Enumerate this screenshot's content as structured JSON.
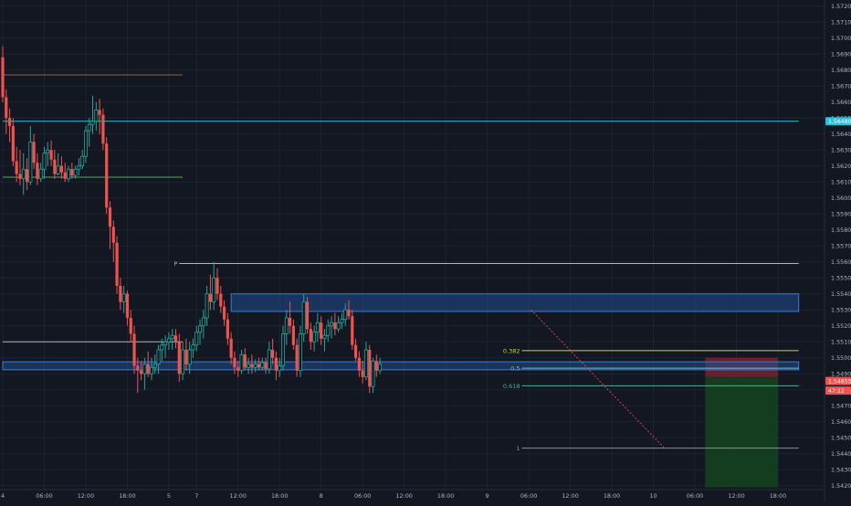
{
  "chart_data": {
    "type": "candlestick",
    "title": "",
    "theme": "dark",
    "colors": {
      "background": "#131722",
      "up": "#26a69a",
      "down": "#ef5350",
      "grid": "#1e2230",
      "axis_text": "#b2b5be",
      "zone": "#1f4f8f",
      "zone_edge": "#3d7bd1",
      "cyan_line": "#28c3d9",
      "green_line": "#4caf50",
      "orange_line": "#8a6a3a",
      "white_line": "#b2b5be",
      "fib_382": "#c9d53a",
      "fib_5": "#7fc97f",
      "fib_618": "#4caf8f",
      "fib_1": "#8a8f9c",
      "stop_box": "#6b2330",
      "target_box": "#15411f",
      "price_badge": "#ef5350",
      "cyan_badge": "#28c3d9"
    },
    "y_axis": {
      "min": 1.5419,
      "max": 1.5722,
      "tick_labels": [
        "1.57200",
        "1.57100",
        "1.57000",
        "1.56900",
        "1.56800",
        "1.56700",
        "1.56600",
        "1.56500",
        "1.56400",
        "1.56300",
        "1.56200",
        "1.56100",
        "1.56000",
        "1.55900",
        "1.55800",
        "1.55700",
        "1.55600",
        "1.55500",
        "1.55400",
        "1.55300",
        "1.55200",
        "1.55100",
        "1.55000",
        "1.54900",
        "1.54800",
        "1.54700",
        "1.54600",
        "1.54500",
        "1.54400",
        "1.54300",
        "1.54200"
      ],
      "badges": [
        {
          "text": "1.56480",
          "value": 1.5648,
          "color": "#28c3d9"
        },
        {
          "text": "1.54855",
          "value": 1.54855,
          "color": "#ef5350"
        },
        {
          "text": "47:12",
          "value": 1.54795,
          "color": "#ef5350"
        }
      ]
    },
    "x_axis": {
      "tick_labels": [
        {
          "text": "4",
          "bar": 0
        },
        {
          "text": "06:00",
          "bar": 12
        },
        {
          "text": "12:00",
          "bar": 24
        },
        {
          "text": "18:00",
          "bar": 36
        },
        {
          "text": "5",
          "bar": 48
        },
        {
          "text": "7",
          "bar": 56
        },
        {
          "text": "12:00",
          "bar": 68
        },
        {
          "text": "18:00",
          "bar": 80
        },
        {
          "text": "8",
          "bar": 92
        },
        {
          "text": "06:00",
          "bar": 104
        },
        {
          "text": "12:00",
          "bar": 116
        },
        {
          "text": "18:00",
          "bar": 128
        },
        {
          "text": "9",
          "bar": 140
        },
        {
          "text": "06:00",
          "bar": 152
        },
        {
          "text": "12:00",
          "bar": 164
        },
        {
          "text": "18:00",
          "bar": 176
        },
        {
          "text": "10",
          "bar": 188
        },
        {
          "text": "06:00",
          "bar": 200
        },
        {
          "text": "12:00",
          "bar": 212
        },
        {
          "text": "18:00",
          "bar": 224
        }
      ],
      "bars_total": 230
    },
    "candles": [
      {
        "o": 1.5688,
        "h": 1.5695,
        "l": 1.566,
        "c": 1.5663
      },
      {
        "o": 1.5663,
        "h": 1.5668,
        "l": 1.564,
        "c": 1.565
      },
      {
        "o": 1.565,
        "h": 1.5656,
        "l": 1.5635,
        "c": 1.5645
      },
      {
        "o": 1.5645,
        "h": 1.565,
        "l": 1.562,
        "c": 1.5623
      },
      {
        "o": 1.5623,
        "h": 1.5632,
        "l": 1.561,
        "c": 1.5615
      },
      {
        "o": 1.5615,
        "h": 1.563,
        "l": 1.5608,
        "c": 1.5612
      },
      {
        "o": 1.5612,
        "h": 1.5628,
        "l": 1.5602,
        "c": 1.5618
      },
      {
        "o": 1.5618,
        "h": 1.5625,
        "l": 1.5605,
        "c": 1.561
      },
      {
        "o": 1.561,
        "h": 1.5645,
        "l": 1.5608,
        "c": 1.5635
      },
      {
        "o": 1.5635,
        "h": 1.564,
        "l": 1.5618,
        "c": 1.5622
      },
      {
        "o": 1.5622,
        "h": 1.5628,
        "l": 1.5608,
        "c": 1.5612
      },
      {
        "o": 1.5612,
        "h": 1.5622,
        "l": 1.561,
        "c": 1.5618
      },
      {
        "o": 1.5618,
        "h": 1.5632,
        "l": 1.5612,
        "c": 1.5628
      },
      {
        "o": 1.5628,
        "h": 1.5635,
        "l": 1.562,
        "c": 1.563
      },
      {
        "o": 1.563,
        "h": 1.5636,
        "l": 1.562,
        "c": 1.5624
      },
      {
        "o": 1.5624,
        "h": 1.563,
        "l": 1.5612,
        "c": 1.5615
      },
      {
        "o": 1.5615,
        "h": 1.5628,
        "l": 1.5614,
        "c": 1.562
      },
      {
        "o": 1.562,
        "h": 1.5626,
        "l": 1.5612,
        "c": 1.5616
      },
      {
        "o": 1.5616,
        "h": 1.5622,
        "l": 1.561,
        "c": 1.5612
      },
      {
        "o": 1.5612,
        "h": 1.562,
        "l": 1.561,
        "c": 1.5618
      },
      {
        "o": 1.5618,
        "h": 1.5622,
        "l": 1.5612,
        "c": 1.5614
      },
      {
        "o": 1.5614,
        "h": 1.562,
        "l": 1.5612,
        "c": 1.5618
      },
      {
        "o": 1.5618,
        "h": 1.5625,
        "l": 1.5614,
        "c": 1.562
      },
      {
        "o": 1.562,
        "h": 1.563,
        "l": 1.5618,
        "c": 1.5626
      },
      {
        "o": 1.5626,
        "h": 1.5645,
        "l": 1.5622,
        "c": 1.5642
      },
      {
        "o": 1.5642,
        "h": 1.565,
        "l": 1.5632,
        "c": 1.5646
      },
      {
        "o": 1.5646,
        "h": 1.5664,
        "l": 1.564,
        "c": 1.5648
      },
      {
        "o": 1.5648,
        "h": 1.566,
        "l": 1.5642,
        "c": 1.5655
      },
      {
        "o": 1.5655,
        "h": 1.5662,
        "l": 1.564,
        "c": 1.5652
      },
      {
        "o": 1.5652,
        "h": 1.5656,
        "l": 1.563,
        "c": 1.5634
      },
      {
        "o": 1.5634,
        "h": 1.5638,
        "l": 1.559,
        "c": 1.5594
      },
      {
        "o": 1.5594,
        "h": 1.5598,
        "l": 1.5568,
        "c": 1.5582
      },
      {
        "o": 1.5582,
        "h": 1.5586,
        "l": 1.556,
        "c": 1.5572
      },
      {
        "o": 1.5572,
        "h": 1.5576,
        "l": 1.554,
        "c": 1.5545
      },
      {
        "o": 1.5545,
        "h": 1.555,
        "l": 1.553,
        "c": 1.5535
      },
      {
        "o": 1.5535,
        "h": 1.5545,
        "l": 1.5528,
        "c": 1.554
      },
      {
        "o": 1.554,
        "h": 1.5542,
        "l": 1.552,
        "c": 1.5525
      },
      {
        "o": 1.5525,
        "h": 1.553,
        "l": 1.551,
        "c": 1.5515
      },
      {
        "o": 1.5515,
        "h": 1.552,
        "l": 1.549,
        "c": 1.5495
      },
      {
        "o": 1.5495,
        "h": 1.55,
        "l": 1.5478,
        "c": 1.5492
      },
      {
        "o": 1.5492,
        "h": 1.5498,
        "l": 1.5486,
        "c": 1.549
      },
      {
        "o": 1.549,
        "h": 1.55,
        "l": 1.548,
        "c": 1.5496
      },
      {
        "o": 1.5496,
        "h": 1.5504,
        "l": 1.5488,
        "c": 1.549
      },
      {
        "o": 1.549,
        "h": 1.55,
        "l": 1.5486,
        "c": 1.5494
      },
      {
        "o": 1.5494,
        "h": 1.5502,
        "l": 1.549,
        "c": 1.5496
      },
      {
        "o": 1.5496,
        "h": 1.5508,
        "l": 1.549,
        "c": 1.5505
      },
      {
        "o": 1.5505,
        "h": 1.5512,
        "l": 1.5498,
        "c": 1.5508
      },
      {
        "o": 1.5508,
        "h": 1.5514,
        "l": 1.55,
        "c": 1.551
      },
      {
        "o": 1.551,
        "h": 1.5516,
        "l": 1.5505,
        "c": 1.5512
      },
      {
        "o": 1.5512,
        "h": 1.5518,
        "l": 1.5505,
        "c": 1.5514
      },
      {
        "o": 1.5514,
        "h": 1.5518,
        "l": 1.5506,
        "c": 1.551
      },
      {
        "o": 1.551,
        "h": 1.5515,
        "l": 1.5485,
        "c": 1.549
      },
      {
        "o": 1.549,
        "h": 1.551,
        "l": 1.5486,
        "c": 1.5505
      },
      {
        "o": 1.5505,
        "h": 1.5512,
        "l": 1.5492,
        "c": 1.5496
      },
      {
        "o": 1.5496,
        "h": 1.551,
        "l": 1.549,
        "c": 1.5505
      },
      {
        "o": 1.5505,
        "h": 1.5512,
        "l": 1.55,
        "c": 1.5508
      },
      {
        "o": 1.5508,
        "h": 1.552,
        "l": 1.5504,
        "c": 1.5516
      },
      {
        "o": 1.5516,
        "h": 1.5524,
        "l": 1.5508,
        "c": 1.552
      },
      {
        "o": 1.552,
        "h": 1.553,
        "l": 1.5512,
        "c": 1.5525
      },
      {
        "o": 1.5525,
        "h": 1.5545,
        "l": 1.552,
        "c": 1.554
      },
      {
        "o": 1.554,
        "h": 1.5552,
        "l": 1.553,
        "c": 1.5535
      },
      {
        "o": 1.5535,
        "h": 1.556,
        "l": 1.553,
        "c": 1.555
      },
      {
        "o": 1.555,
        "h": 1.5556,
        "l": 1.5536,
        "c": 1.554
      },
      {
        "o": 1.554,
        "h": 1.5545,
        "l": 1.5528,
        "c": 1.5532
      },
      {
        "o": 1.5532,
        "h": 1.5536,
        "l": 1.552,
        "c": 1.5524
      },
      {
        "o": 1.5524,
        "h": 1.5528,
        "l": 1.5508,
        "c": 1.5512
      },
      {
        "o": 1.5512,
        "h": 1.5516,
        "l": 1.5496,
        "c": 1.55
      },
      {
        "o": 1.55,
        "h": 1.5504,
        "l": 1.549,
        "c": 1.5494
      },
      {
        "o": 1.5494,
        "h": 1.5498,
        "l": 1.5488,
        "c": 1.5492
      },
      {
        "o": 1.5492,
        "h": 1.5505,
        "l": 1.549,
        "c": 1.5502
      },
      {
        "o": 1.5502,
        "h": 1.5506,
        "l": 1.5492,
        "c": 1.5494
      },
      {
        "o": 1.5494,
        "h": 1.55,
        "l": 1.549,
        "c": 1.5496
      },
      {
        "o": 1.5496,
        "h": 1.5502,
        "l": 1.549,
        "c": 1.5494
      },
      {
        "o": 1.5494,
        "h": 1.5499,
        "l": 1.5491,
        "c": 1.5496
      },
      {
        "o": 1.5496,
        "h": 1.55,
        "l": 1.5492,
        "c": 1.5494
      },
      {
        "o": 1.5494,
        "h": 1.55,
        "l": 1.5492,
        "c": 1.5497
      },
      {
        "o": 1.5497,
        "h": 1.55,
        "l": 1.549,
        "c": 1.5493
      },
      {
        "o": 1.5493,
        "h": 1.551,
        "l": 1.549,
        "c": 1.5505
      },
      {
        "o": 1.5505,
        "h": 1.5512,
        "l": 1.5496,
        "c": 1.55
      },
      {
        "o": 1.55,
        "h": 1.5504,
        "l": 1.5486,
        "c": 1.5492
      },
      {
        "o": 1.5492,
        "h": 1.55,
        "l": 1.5488,
        "c": 1.5495
      },
      {
        "o": 1.5495,
        "h": 1.552,
        "l": 1.5492,
        "c": 1.5515
      },
      {
        "o": 1.5515,
        "h": 1.553,
        "l": 1.5508,
        "c": 1.5525
      },
      {
        "o": 1.5525,
        "h": 1.5535,
        "l": 1.5515,
        "c": 1.552
      },
      {
        "o": 1.552,
        "h": 1.5524,
        "l": 1.5505,
        "c": 1.5508
      },
      {
        "o": 1.5508,
        "h": 1.5512,
        "l": 1.5488,
        "c": 1.5492
      },
      {
        "o": 1.5492,
        "h": 1.552,
        "l": 1.5488,
        "c": 1.5515
      },
      {
        "o": 1.5515,
        "h": 1.554,
        "l": 1.551,
        "c": 1.5535
      },
      {
        "o": 1.5535,
        "h": 1.5538,
        "l": 1.5515,
        "c": 1.5518
      },
      {
        "o": 1.5518,
        "h": 1.5522,
        "l": 1.5505,
        "c": 1.551
      },
      {
        "o": 1.551,
        "h": 1.552,
        "l": 1.5504,
        "c": 1.5516
      },
      {
        "o": 1.5516,
        "h": 1.5528,
        "l": 1.551,
        "c": 1.5522
      },
      {
        "o": 1.5522,
        "h": 1.5526,
        "l": 1.5508,
        "c": 1.5512
      },
      {
        "o": 1.5512,
        "h": 1.5518,
        "l": 1.5504,
        "c": 1.5514
      },
      {
        "o": 1.5514,
        "h": 1.5524,
        "l": 1.551,
        "c": 1.552
      },
      {
        "o": 1.552,
        "h": 1.5526,
        "l": 1.5512,
        "c": 1.5522
      },
      {
        "o": 1.5522,
        "h": 1.5528,
        "l": 1.5514,
        "c": 1.5518
      },
      {
        "o": 1.5518,
        "h": 1.5526,
        "l": 1.5516,
        "c": 1.5522
      },
      {
        "o": 1.5522,
        "h": 1.5528,
        "l": 1.5518,
        "c": 1.5524
      },
      {
        "o": 1.5524,
        "h": 1.5534,
        "l": 1.552,
        "c": 1.553
      },
      {
        "o": 1.553,
        "h": 1.5536,
        "l": 1.5524,
        "c": 1.5526
      },
      {
        "o": 1.5526,
        "h": 1.553,
        "l": 1.5505,
        "c": 1.5508
      },
      {
        "o": 1.5508,
        "h": 1.5512,
        "l": 1.5498,
        "c": 1.55
      },
      {
        "o": 1.55,
        "h": 1.5504,
        "l": 1.5488,
        "c": 1.5492
      },
      {
        "o": 1.5492,
        "h": 1.5498,
        "l": 1.5484,
        "c": 1.5488
      },
      {
        "o": 1.5488,
        "h": 1.551,
        "l": 1.5486,
        "c": 1.5505
      },
      {
        "o": 1.5505,
        "h": 1.5508,
        "l": 1.5478,
        "c": 1.5482
      },
      {
        "o": 1.5482,
        "h": 1.55,
        "l": 1.5478,
        "c": 1.5498
      },
      {
        "o": 1.5498,
        "h": 1.5502,
        "l": 1.5488,
        "c": 1.5492
      },
      {
        "o": 1.5492,
        "h": 1.55,
        "l": 1.549,
        "c": 1.5496
      }
    ],
    "levels": [
      {
        "name": "orange-level",
        "value": 1.5677,
        "x0": 0,
        "x1": 52,
        "color": "#8a6a3a",
        "label": ""
      },
      {
        "name": "cyan-level",
        "value": 1.5648,
        "x0": 0,
        "x1": 230,
        "color": "#28c3d9",
        "label": ""
      },
      {
        "name": "green-level",
        "value": 1.5613,
        "x0": 0,
        "x1": 52,
        "color": "#4caf50",
        "label": ""
      },
      {
        "name": "p-level",
        "value": 1.5559,
        "x0": 51,
        "x1": 230,
        "color": "#b2b5be",
        "label": "P"
      },
      {
        "name": "white-level",
        "value": 1.551,
        "x0": 0,
        "x1": 52,
        "color": "#b2b5be",
        "label": ""
      },
      {
        "name": "fib-382",
        "value": 1.55045,
        "x0": 150,
        "x1": 230,
        "color": "#c9d53a",
        "label": "0.382"
      },
      {
        "name": "fib-5",
        "value": 1.54935,
        "x0": 150,
        "x1": 230,
        "color": "#7fc97f",
        "label": "0.5"
      },
      {
        "name": "fib-618",
        "value": 1.54825,
        "x0": 150,
        "x1": 230,
        "color": "#4caf8f",
        "label": "0.618"
      },
      {
        "name": "fib-1",
        "value": 1.54435,
        "x0": 150,
        "x1": 230,
        "color": "#8a8f9c",
        "label": "1"
      }
    ],
    "zones": [
      {
        "name": "upper-demand-zone",
        "top": 1.554,
        "bottom": 1.5529,
        "x0": 66,
        "x1": 230
      },
      {
        "name": "lower-demand-zone",
        "top": 1.54975,
        "bottom": 1.54925,
        "x0": 0,
        "x1": 230
      }
    ],
    "position": {
      "entry": 1.5488,
      "stop": 1.55,
      "target": 1.5419,
      "x0": 203,
      "x1": 224
    }
  }
}
